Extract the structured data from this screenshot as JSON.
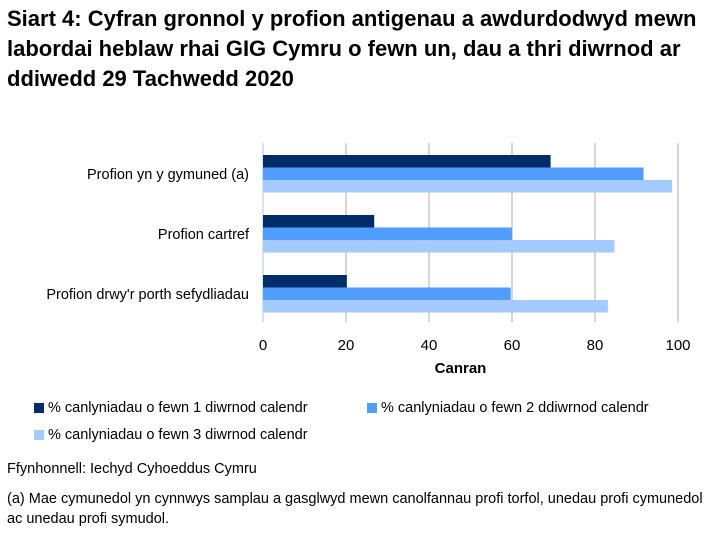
{
  "title": "Siart 4: Cyfran gronnol y profion antigenau a awdurdodwyd mewn labordai heblaw rhai GIG Cymru o fewn un, dau a thri diwrnod ar ddiwedd 29 Tachwedd 2020",
  "chart_data": {
    "type": "bar",
    "orientation": "horizontal",
    "categories": [
      "Profion yn y gymuned (a)",
      "Profion cartref",
      "Profion drwy'r porth sefydliadau"
    ],
    "series": [
      {
        "name": "% canlyniadau o fewn 1 diwrnod calendr",
        "values": [
          69.3,
          26.8,
          20.2
        ],
        "color": "#002d6a"
      },
      {
        "name": "% canlyniadau o fewn 2 ddiwrnod calendr",
        "values": [
          91.7,
          60.0,
          59.7
        ],
        "color": "#519dff"
      },
      {
        "name": "% canlyniadau o fewn 3 diwrnod calendr",
        "values": [
          98.6,
          84.7,
          83.1
        ],
        "color": "#a3cbff"
      }
    ],
    "xlabel": "Canran",
    "xlim": [
      0,
      100
    ],
    "xticks": [
      "0",
      "20",
      "40",
      "60",
      "80",
      "100"
    ],
    "grid": true,
    "legend": "bottom"
  },
  "source": "Ffynhonnell: Iechyd Cyhoeddus Cymru",
  "footnote": "(a) Mae cymunedol yn cynnwys samplau a gasglwyd mewn canolfannau profi torfol, unedau profi cymunedol ac unedau profi symudol."
}
